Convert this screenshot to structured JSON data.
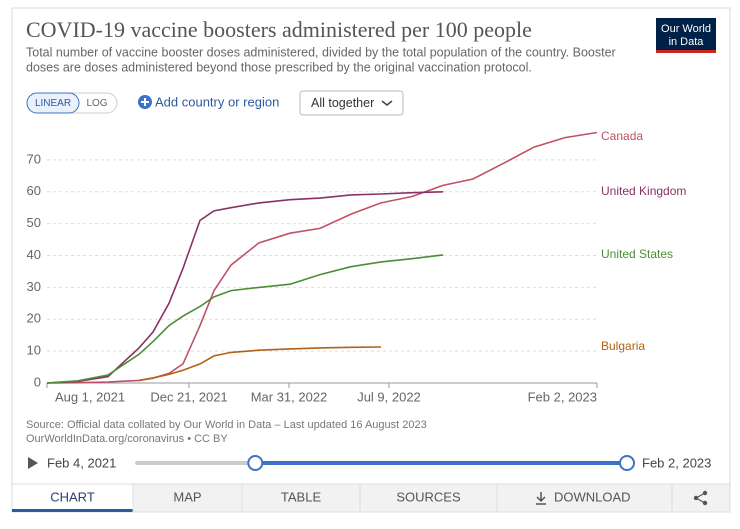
{
  "chart_data": {
    "type": "line",
    "title": "COVID-19 vaccine boosters administered per 100 people",
    "subtitle": [
      "Total number of vaccine booster doses administered, divided by the total population of the country. Booster",
      "doses are doses administered beyond those prescribed by the original vaccination protocol."
    ],
    "x": [
      "2021-08-01",
      "2021-09-01",
      "2021-10-01",
      "2021-11-01",
      "2021-11-15",
      "2021-12-01",
      "2021-12-15",
      "2022-01-01",
      "2022-01-15",
      "2022-02-01",
      "2022-03-01",
      "2022-04-01",
      "2022-05-01",
      "2022-06-01",
      "2022-07-01",
      "2022-08-01",
      "2022-09-01",
      "2022-10-01",
      "2022-11-01",
      "2022-12-01",
      "2023-01-01",
      "2023-02-02"
    ],
    "series": [
      {
        "name": "Canada",
        "color": "#c15065",
        "values": [
          0,
          0.1,
          0.3,
          0.8,
          1.5,
          3,
          6,
          18,
          29,
          37,
          44,
          47,
          48.5,
          53,
          56.5,
          58.5,
          62,
          64,
          69,
          74,
          77,
          78.6
        ]
      },
      {
        "name": "United Kingdom",
        "color": "#883265",
        "values": [
          0,
          0.5,
          2,
          11,
          16,
          25,
          36,
          51,
          54,
          55,
          56.5,
          57.5,
          58,
          59,
          59.3,
          59.7,
          60,
          null,
          null,
          null,
          null,
          null
        ]
      },
      {
        "name": "United States",
        "color": "#4b8c36",
        "values": [
          0,
          0.7,
          2.5,
          9,
          13,
          18,
          21,
          24,
          27,
          29,
          30,
          31,
          34,
          36.5,
          38,
          39,
          40.2,
          null,
          null,
          null,
          null,
          null
        ]
      },
      {
        "name": "Bulgaria",
        "color": "#b16214",
        "values": [
          null,
          null,
          null,
          0.8,
          1.6,
          2.7,
          4,
          6,
          8.5,
          9.6,
          10.3,
          10.7,
          11,
          11.2,
          11.3,
          null,
          null,
          null,
          null,
          null,
          null,
          null
        ]
      }
    ],
    "xlim": [
      "2021-08-01",
      "2023-02-02"
    ],
    "xticks": [
      {
        "value": "2021-08-01",
        "label": "Aug 1, 2021"
      },
      {
        "value": "2021-12-21",
        "label": "Dec 21, 2021"
      },
      {
        "value": "2022-03-31",
        "label": "Mar 31, 2022"
      },
      {
        "value": "2022-07-09",
        "label": "Jul 9, 2022"
      },
      {
        "value": "2023-02-02",
        "label": "Feb 2, 2023"
      }
    ],
    "ylim": [
      0,
      80
    ],
    "yticks": [
      0,
      10,
      20,
      30,
      40,
      50,
      60,
      70
    ],
    "grid": true,
    "source": [
      "Source: Official data collated by Our World in Data – Last updated 16 August 2023",
      "OurWorldInData.org/coronavirus • CC BY"
    ]
  },
  "logo": [
    "Our World",
    "in Data"
  ],
  "controls": {
    "linear": "LINEAR",
    "log": "LOG",
    "add": "Add country or region",
    "facet": "All together"
  },
  "timeline": {
    "start": {
      "value": "2021-02-04",
      "label": "Feb 4, 2021"
    },
    "end": {
      "value": "2023-02-02",
      "label": "Feb 2, 2023"
    }
  },
  "tabs": [
    "CHART",
    "MAP",
    "TABLE",
    "SOURCES",
    "DOWNLOAD"
  ]
}
